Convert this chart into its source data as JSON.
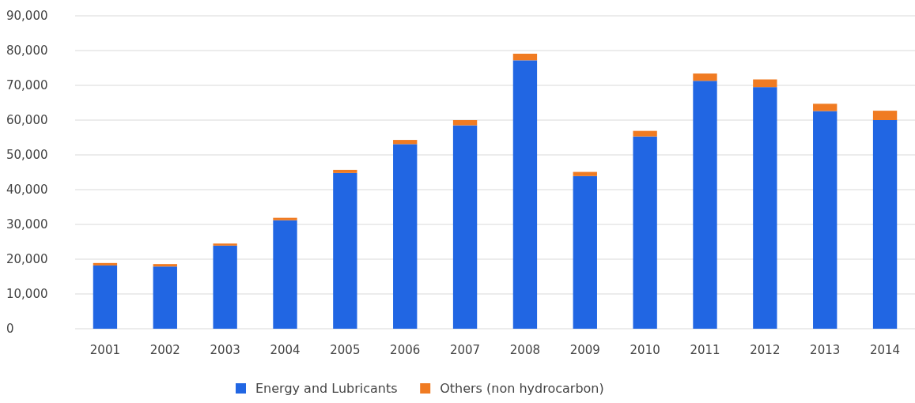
{
  "chart_data": {
    "type": "bar",
    "stacked": true,
    "categories": [
      "2001",
      "2002",
      "2003",
      "2004",
      "2005",
      "2006",
      "2007",
      "2008",
      "2009",
      "2010",
      "2011",
      "2012",
      "2013",
      "2014"
    ],
    "series": [
      {
        "name": "Energy and Lubricants",
        "color": "#2166e3",
        "values": [
          18200,
          17900,
          23900,
          31200,
          44800,
          53100,
          58500,
          77200,
          43900,
          55300,
          71300,
          69500,
          62600,
          60000
        ]
      },
      {
        "name": "Others (non hydrocarbon)",
        "color": "#f07b22",
        "values": [
          700,
          700,
          600,
          700,
          900,
          1200,
          1500,
          1900,
          1200,
          1600,
          2100,
          2200,
          2100,
          2700
        ]
      }
    ],
    "ylim": [
      0,
      90000
    ],
    "yticks": [
      {
        "value": 0,
        "label": "0"
      },
      {
        "value": 10000,
        "label": "10,000"
      },
      {
        "value": 20000,
        "label": "20,000"
      },
      {
        "value": 30000,
        "label": "30,000"
      },
      {
        "value": 40000,
        "label": "40,000"
      },
      {
        "value": 50000,
        "label": "50,000"
      },
      {
        "value": 60000,
        "label": "60,000"
      },
      {
        "value": 70000,
        "label": "70,000"
      },
      {
        "value": 80000,
        "label": "80,000"
      },
      {
        "value": 90000,
        "label": "90,000"
      }
    ],
    "grid": "y",
    "legend": "bottom"
  }
}
